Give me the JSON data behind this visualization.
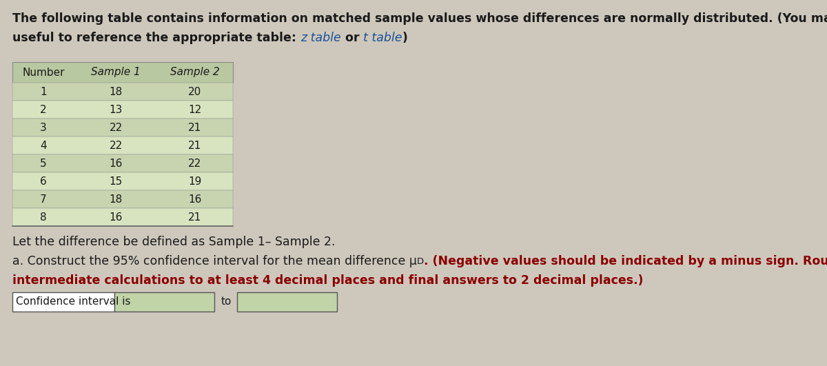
{
  "bg_color": "#cec8bc",
  "text_color_dark": "#1a1a1a",
  "text_color_red": "#8b0000",
  "text_color_link": "#1a5296",
  "intro_line1": "The following table contains information on matched sample values whose differences are normally distributed. (You may find it",
  "intro_line2_prefix": "useful to reference the appropriate table: ",
  "intro_link1": "z table",
  "intro_mid": " or ",
  "intro_link2": "t table",
  "intro_suffix": ")",
  "table_header": [
    "Number",
    "Sample 1",
    "Sample 2"
  ],
  "table_rows": [
    [
      "1",
      "18",
      "20"
    ],
    [
      "2",
      "13",
      "12"
    ],
    [
      "3",
      "22",
      "21"
    ],
    [
      "4",
      "22",
      "21"
    ],
    [
      "5",
      "16",
      "22"
    ],
    [
      "6",
      "15",
      "19"
    ],
    [
      "7",
      "18",
      "16"
    ],
    [
      "8",
      "16",
      "21"
    ]
  ],
  "row_even_color": "#c8d4b0",
  "row_odd_color": "#d8e4c0",
  "header_color": "#b8c8a0",
  "diff_text": "Let the difference be defined as Sample 1– Sample 2.",
  "part_a_prefix": "a. Construct the 95% confidence interval for the mean difference μ",
  "part_a_sub": "D",
  "part_a_bold": ". (Negative values should be indicated by a minus sign. Round",
  "part_a_line2": "intermediate calculations to at least 4 decimal places and final answers to 2 decimal places.)",
  "ci_label": "Confidence interval is",
  "ci_to": "to",
  "font_size_intro": 12.5,
  "font_size_table_header": 11,
  "font_size_table_data": 11,
  "font_size_body": 12.5,
  "font_size_ci": 11
}
